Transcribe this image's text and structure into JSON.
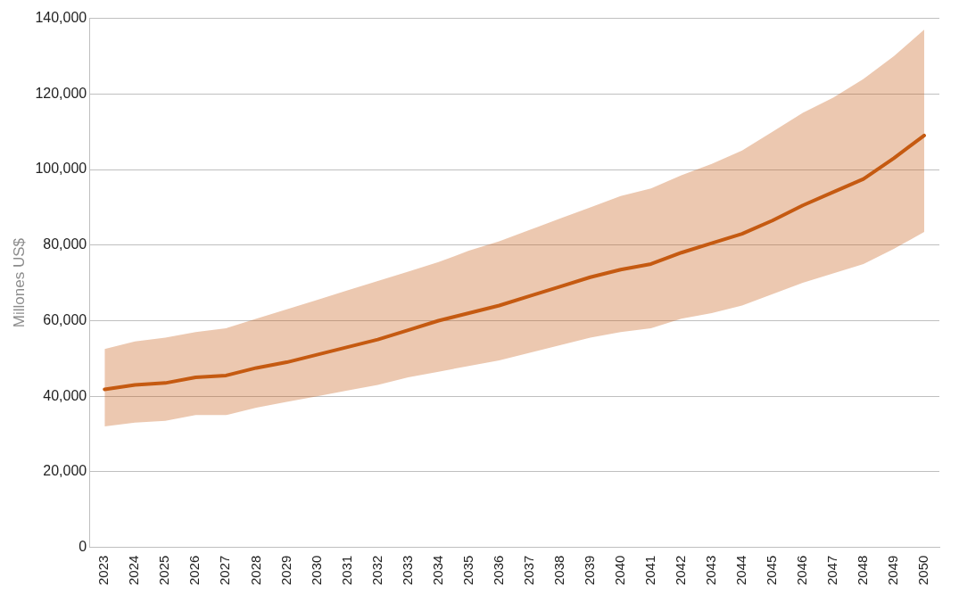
{
  "chart_data": {
    "type": "line",
    "ylabel": "Millones US$",
    "categories": [
      "2023",
      "2024",
      "2025",
      "2026",
      "2027",
      "2028",
      "2029",
      "2030",
      "2031",
      "2032",
      "2033",
      "2034",
      "2035",
      "2036",
      "2037",
      "2038",
      "2039",
      "2040",
      "2041",
      "2042",
      "2043",
      "2044",
      "2045",
      "2046",
      "2047",
      "2048",
      "2049",
      "2050"
    ],
    "series": [
      {
        "color": "#c55a11",
        "values": [
          41800,
          43000,
          43500,
          45000,
          45500,
          47500,
          49000,
          51000,
          53000,
          55000,
          57500,
          60000,
          62000,
          64000,
          66500,
          69000,
          71500,
          73500,
          75000,
          78000,
          80500,
          83000,
          86500,
          90500,
          94000,
          97500,
          103000,
          109000
        ],
        "upper": [
          52500,
          54500,
          55500,
          57000,
          58000,
          60500,
          63000,
          65500,
          68000,
          70500,
          73000,
          75500,
          78500,
          81000,
          84000,
          87000,
          90000,
          93000,
          95000,
          98500,
          101500,
          105000,
          110000,
          115000,
          119000,
          124000,
          130000,
          137000
        ],
        "lower": [
          32000,
          33000,
          33500,
          35000,
          35000,
          37000,
          38500,
          40000,
          41500,
          43000,
          45000,
          46500,
          48000,
          49500,
          51500,
          53500,
          55500,
          57000,
          58000,
          60500,
          62000,
          64000,
          67000,
          70000,
          72500,
          75000,
          79000,
          83500
        ]
      }
    ],
    "ylim": [
      0,
      140000
    ],
    "yticks": [
      {
        "value": 0,
        "label": "0"
      },
      {
        "value": 20000,
        "label": "20,000"
      },
      {
        "value": 40000,
        "label": "40,000"
      },
      {
        "value": 60000,
        "label": "60,000"
      },
      {
        "value": 80000,
        "label": "80,000"
      },
      {
        "value": 100000,
        "label": "100,000"
      },
      {
        "value": 120000,
        "label": "120,000"
      },
      {
        "value": 140000,
        "label": "140,000"
      }
    ],
    "grid": "y",
    "legend": false,
    "marker": "none",
    "line_style": "solid"
  }
}
